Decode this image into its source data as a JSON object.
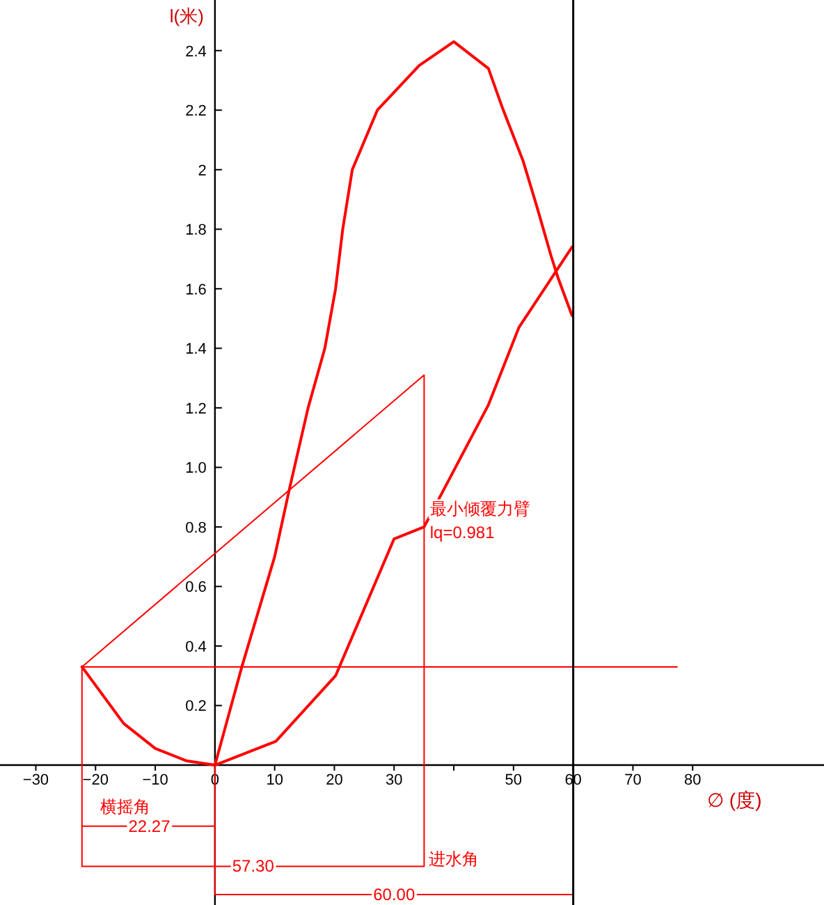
{
  "chart_data": {
    "type": "line",
    "xlabel": "∅ (度)",
    "ylabel": "l(米)",
    "xlim": [
      -36,
      102
    ],
    "ylim": [
      -0.47,
      2.57
    ],
    "xticks": [
      -30,
      -20,
      -10,
      0,
      10,
      20,
      30,
      {
        "value": 40,
        "label": null
      },
      50,
      60,
      70,
      80
    ],
    "yticks": [
      0.2,
      0.4,
      0.6,
      0.8,
      {
        "value": 1,
        "label": "1.0"
      },
      1.2,
      1.4,
      1.6,
      1.8,
      2,
      2.2,
      2.4
    ],
    "series": [
      {
        "color": "#ff0000",
        "x": [
          0,
          4.5,
          10,
          12.5,
          15.6,
          18.4,
          20.2,
          21.4,
          23,
          27.2,
          34.2,
          40,
          45.8,
          48.1,
          51.6,
          54,
          56.3,
          57.4,
          59.8
        ],
        "values": [
          0,
          0.33,
          0.7,
          0.93,
          1.2,
          1.4,
          1.6,
          1.8,
          2,
          2.2,
          2.35,
          2.43,
          2.34,
          2.21,
          2.03,
          1.87,
          1.71,
          1.64,
          1.51
        ]
      },
      {
        "color": "#ff0000",
        "x": [
          -22.27,
          -15.3,
          -10,
          -4.7,
          0,
          10.2,
          20.2,
          30,
          35.03,
          45.8,
          50.9,
          59.8
        ],
        "values": [
          0.33,
          0.14,
          0.056,
          0.014,
          0,
          0.08,
          0.3,
          0.76,
          0.8,
          1.21,
          1.47,
          1.74
        ]
      },
      {
        "color": "#ff0000",
        "x": [
          77.4,
          -22.27,
          35.03,
          35.03,
          -22.27,
          -22.27
        ],
        "values": [
          0.33,
          0.33,
          1.31,
          -0.34,
          -0.34,
          0.33
        ]
      },
      {
        "color": "#ff0000",
        "x": [
          0,
          0,
          60
        ],
        "values": [
          0,
          -0.435,
          -0.435
        ]
      },
      {
        "color": "#ff0000",
        "x": [
          -22.27,
          0
        ],
        "values": [
          -0.205,
          -0.205
        ]
      }
    ],
    "ref_lines": [
      {
        "axis": "x",
        "value": 60,
        "color": "#000000"
      }
    ],
    "annotations": [
      {
        "text": "横摇角",
        "x": -15,
        "y": -0.14
      },
      {
        "text": "22.27",
        "x": -11,
        "y": -0.205
      },
      {
        "text": "57.30",
        "x": 6.4,
        "y": -0.34
      },
      {
        "text": "60.00",
        "x": 30,
        "y": -0.435
      },
      "进水角",
      {
        "text": "最小倾覆力臂",
        "x": 36,
        "y": 0.86
      },
      {
        "text": "lq=0.981",
        "x": 36,
        "y": 0.78
      }
    ]
  }
}
